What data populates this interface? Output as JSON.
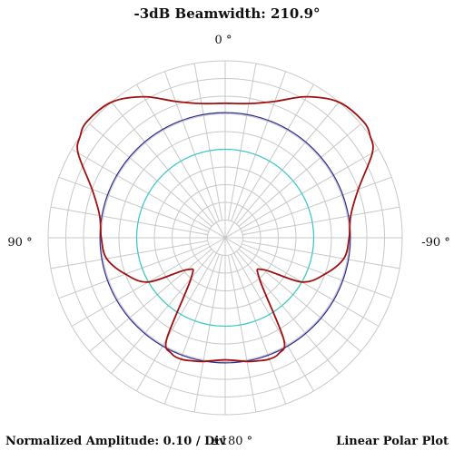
{
  "chart_data": {
    "type": "line",
    "subtype": "polar",
    "title": "-3dB Beamwidth: 210.9°",
    "angle_labels": {
      "top": "0 °",
      "left": "90 °",
      "right": "-90 °",
      "bottom": "±180 °"
    },
    "footer_left": "Normalized Amplitude: 0.10 / Div",
    "footer_right": "Linear Polar Plot",
    "radial_range": [
      0,
      1
    ],
    "radial_step": 0.1,
    "angular_grid_step_deg": 10,
    "grid": true,
    "colors": {
      "grid": "#c8c8c8",
      "pattern": "#a01010",
      "reference_outer": "#2b2b8f",
      "reference_inner": "#3cc8c8"
    },
    "reference_circles": [
      {
        "level": 0.707,
        "color": "#2b2b8f"
      },
      {
        "level": 0.5,
        "color": "#3cc8c8"
      }
    ],
    "series": [
      {
        "angle_deg": [
          0,
          10,
          20,
          30,
          40,
          50,
          55,
          60,
          70,
          80,
          90,
          100,
          110,
          120,
          130,
          140,
          150,
          155,
          160,
          165,
          170,
          180,
          190,
          195,
          200,
          205,
          210,
          220,
          230,
          240,
          250,
          260,
          270,
          280,
          290,
          300,
          305,
          310,
          320,
          330,
          340,
          350
        ],
        "values": [
          0.76,
          0.77,
          0.82,
          0.92,
          1.0,
          1.02,
          1.0,
          0.96,
          0.8,
          0.72,
          0.7,
          0.68,
          0.6,
          0.5,
          0.28,
          0.3,
          0.66,
          0.72,
          0.73,
          0.72,
          0.71,
          0.69,
          0.71,
          0.72,
          0.73,
          0.72,
          0.66,
          0.3,
          0.28,
          0.5,
          0.6,
          0.68,
          0.7,
          0.72,
          0.8,
          0.96,
          1.0,
          1.02,
          1.0,
          0.92,
          0.82,
          0.77
        ]
      }
    ]
  }
}
